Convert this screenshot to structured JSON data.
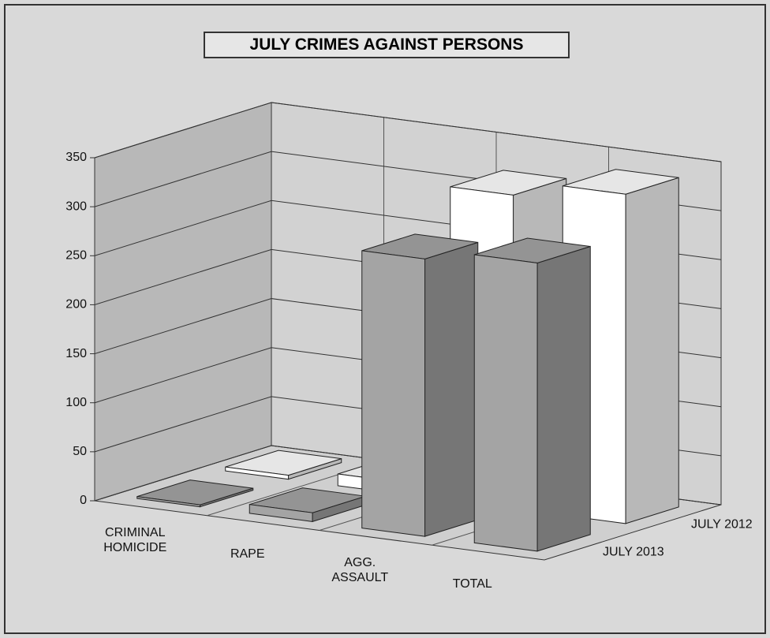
{
  "chart_data": {
    "type": "bar3d",
    "title": "JULY CRIMES AGAINST PERSONS",
    "categories": [
      "CRIMINAL HOMICIDE",
      "RAPE",
      "AGG. ASSAULT",
      "TOTAL"
    ],
    "series": [
      {
        "name": "JULY 2013",
        "color": "#a4a4a4",
        "values": [
          2,
          9,
          283,
          294
        ]
      },
      {
        "name": "JULY 2012",
        "color": "#ffffff",
        "values": [
          4,
          12,
          320,
          336
        ]
      }
    ],
    "ylim": [
      0,
      350
    ],
    "yticks": [
      0,
      50,
      100,
      150,
      200,
      250,
      300,
      350
    ],
    "grid": true
  }
}
